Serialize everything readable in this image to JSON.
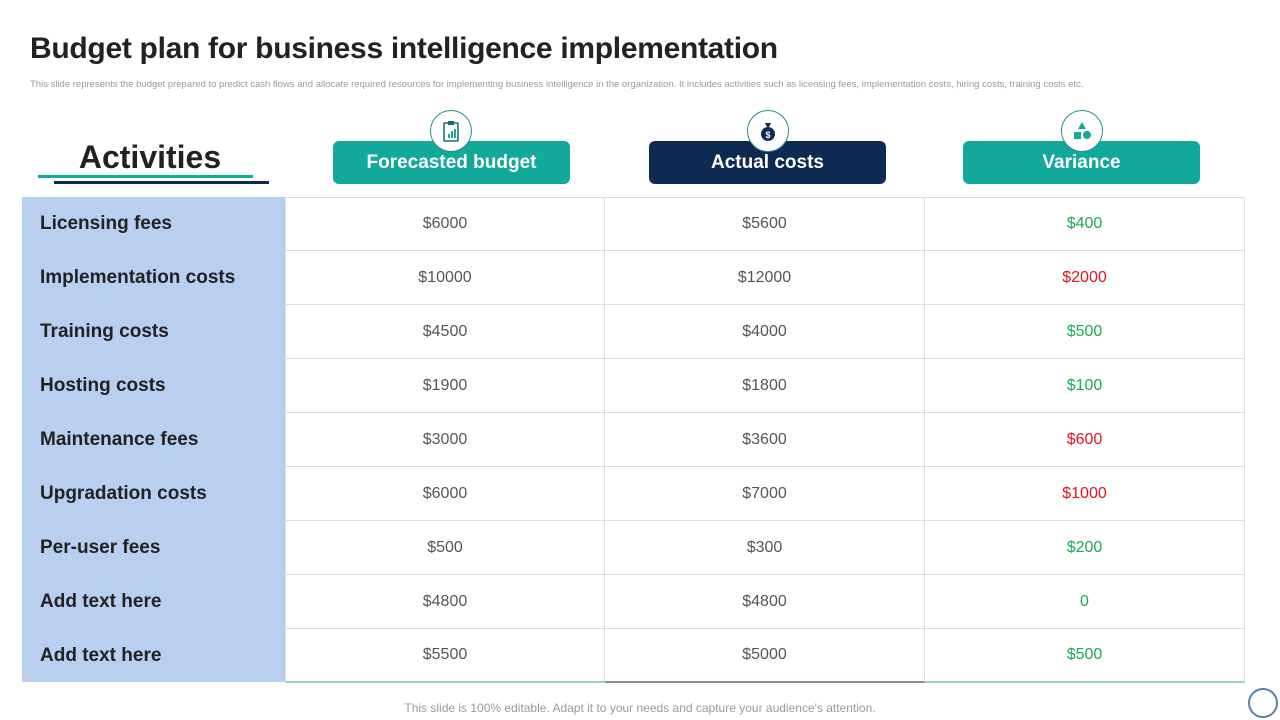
{
  "title": "Budget plan for business intelligence implementation",
  "subtitle": "This slide represents the budget prepared to predict cash flows and allocate required resources for implementing business intelligence in the organization. It includes activities such as licensing fees, implementation  costs, hiring costs, training costs etc.",
  "activities_heading": "Activities",
  "columns": [
    {
      "label": "Forecasted budget",
      "color": "#12a89a",
      "icon": "clipboard-chart-icon"
    },
    {
      "label": "Actual costs",
      "color": "#0f2a52",
      "icon": "money-bag-icon"
    },
    {
      "label": "Variance",
      "color": "#12a89a",
      "icon": "variance-shapes-icon"
    }
  ],
  "colors": {
    "positive": "#1aaa55",
    "negative": "#e0141e",
    "label_bg": "#b8cff0"
  },
  "rows": [
    {
      "activity": "Licensing fees",
      "forecast": "$6000",
      "actual": "$5600",
      "variance": "$400",
      "sign": "positive"
    },
    {
      "activity": "Implementation costs",
      "forecast": "$10000",
      "actual": "$12000",
      "variance": "$2000",
      "sign": "negative"
    },
    {
      "activity": "Training costs",
      "forecast": "$4500",
      "actual": "$4000",
      "variance": "$500",
      "sign": "positive"
    },
    {
      "activity": "Hosting costs",
      "forecast": "$1900",
      "actual": "$1800",
      "variance": "$100",
      "sign": "positive"
    },
    {
      "activity": "Maintenance fees",
      "forecast": "$3000",
      "actual": "$3600",
      "variance": "$600",
      "sign": "negative"
    },
    {
      "activity": "Upgradation costs",
      "forecast": "$6000",
      "actual": "$7000",
      "variance": "$1000",
      "sign": "negative"
    },
    {
      "activity": "Per-user fees",
      "forecast": "$500",
      "actual": "$300",
      "variance": "$200",
      "sign": "positive"
    },
    {
      "activity": "Add text here",
      "forecast": "$4800",
      "actual": "$4800",
      "variance": "0",
      "sign": "positive"
    },
    {
      "activity": "Add text here",
      "forecast": "$5500",
      "actual": "$5000",
      "variance": "$500",
      "sign": "positive"
    }
  ],
  "footer": "This slide is 100% editable. Adapt it to your needs and capture your audience's attention."
}
